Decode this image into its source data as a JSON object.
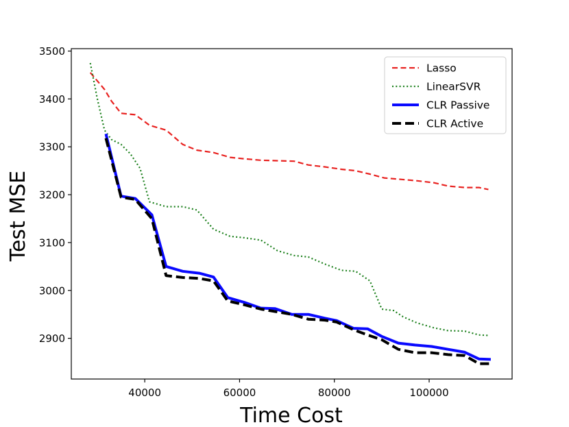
{
  "chart_data": {
    "type": "line",
    "title": "",
    "xlabel": "Time Cost",
    "ylabel": "Test MSE",
    "xlim": [
      24500,
      117500
    ],
    "ylim": [
      2815,
      3505
    ],
    "xticks": [
      40000,
      60000,
      80000,
      100000
    ],
    "yticks": [
      2900,
      3000,
      3100,
      3200,
      3300,
      3400,
      3500
    ],
    "legend_position": "top-right",
    "grid": false,
    "series": [
      {
        "name": "Lasso",
        "color": "#e8211f",
        "style": "dashed",
        "x": [
          28500,
          31500,
          33000,
          35000,
          38000,
          41000,
          44500,
          48000,
          51000,
          54500,
          58000,
          61000,
          64500,
          68000,
          71500,
          74500,
          78000,
          81500,
          84500,
          87500,
          90500,
          94000,
          97500,
          101000,
          104000,
          107500,
          110500,
          112500
        ],
        "y": [
          3455,
          3420,
          3395,
          3370,
          3367,
          3345,
          3335,
          3305,
          3293,
          3288,
          3278,
          3275,
          3272,
          3271,
          3270,
          3262,
          3258,
          3253,
          3250,
          3243,
          3235,
          3232,
          3229,
          3225,
          3218,
          3215,
          3215,
          3211
        ]
      },
      {
        "name": "LinearSVR",
        "color": "#1a7f1a",
        "style": "dotted",
        "x": [
          28500,
          30000,
          31500,
          33000,
          35000,
          37000,
          39000,
          41000,
          44500,
          48000,
          51000,
          54500,
          58000,
          61000,
          64500,
          68000,
          71500,
          74500,
          78000,
          81500,
          84500,
          87500,
          90000,
          92500,
          94500,
          97500,
          101000,
          104000,
          107500,
          110500,
          112500
        ],
        "y": [
          3475,
          3400,
          3335,
          3315,
          3305,
          3285,
          3255,
          3185,
          3175,
          3175,
          3168,
          3128,
          3113,
          3110,
          3105,
          3083,
          3073,
          3070,
          3055,
          3042,
          3040,
          3020,
          2961,
          2958,
          2945,
          2932,
          2922,
          2916,
          2915,
          2907,
          2906
        ]
      },
      {
        "name": "CLR Passive",
        "color": "#0a0aff",
        "style": "solid",
        "x": [
          31800,
          35000,
          38000,
          41500,
          44500,
          48000,
          51500,
          54500,
          57500,
          61000,
          64500,
          67500,
          71000,
          74500,
          78000,
          80500,
          84000,
          87000,
          90000,
          93500,
          97000,
          100500,
          104000,
          107500,
          110500,
          113000
        ],
        "y": [
          3327,
          3197,
          3192,
          3158,
          3050,
          3040,
          3036,
          3028,
          2985,
          2975,
          2963,
          2962,
          2950,
          2950,
          2942,
          2937,
          2921,
          2920,
          2904,
          2890,
          2886,
          2883,
          2877,
          2871,
          2857,
          2856
        ]
      },
      {
        "name": "CLR Active",
        "color": "#000000",
        "style": "dashed",
        "x": [
          31800,
          35000,
          38000,
          41500,
          44500,
          48000,
          51500,
          54500,
          57500,
          61000,
          64500,
          67500,
          71000,
          74500,
          78000,
          80500,
          84000,
          87000,
          90000,
          93500,
          97000,
          100500,
          104000,
          107500,
          110500,
          113000
        ],
        "y": [
          3318,
          3195,
          3190,
          3150,
          3031,
          3027,
          3025,
          3020,
          2978,
          2970,
          2961,
          2956,
          2950,
          2940,
          2938,
          2934,
          2918,
          2907,
          2897,
          2877,
          2870,
          2870,
          2866,
          2864,
          2847,
          2847
        ]
      }
    ]
  }
}
